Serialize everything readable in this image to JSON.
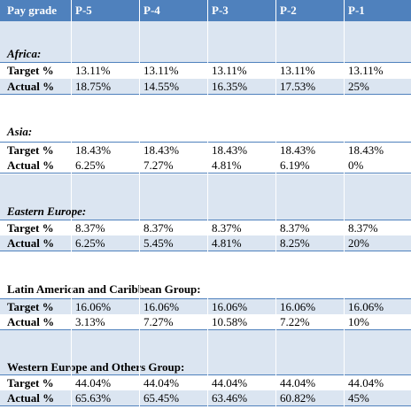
{
  "header": {
    "label": "Pay grade",
    "columns": [
      "P-5",
      "P-4",
      "P-3",
      "P-2",
      "P-1"
    ]
  },
  "groups": [
    {
      "name": "Africa:",
      "target_label": "Target %",
      "actual_label": "Actual %",
      "target": [
        "13.11%",
        "13.11%",
        "13.11%",
        "13.11%",
        "13.11%"
      ],
      "actual": [
        "18.75%",
        "14.55%",
        "16.35%",
        "17.53%",
        "25%"
      ]
    },
    {
      "name": "Asia:",
      "target_label": "Target %",
      "actual_label": "Actual %",
      "target": [
        "18.43%",
        "18.43%",
        "18.43%",
        "18.43%",
        "18.43%"
      ],
      "actual": [
        "6.25%",
        "7.27%",
        "4.81%",
        "6.19%",
        "0%"
      ]
    },
    {
      "name": "Eastern Europe:",
      "target_label": "Target %",
      "actual_label": "Actual %",
      "target": [
        "8.37%",
        "8.37%",
        "8.37%",
        "8.37%",
        "8.37%"
      ],
      "actual": [
        "6.25%",
        "5.45%",
        "4.81%",
        "8.25%",
        "20%"
      ]
    },
    {
      "name": "Latin American and Caribbean Group:",
      "target_label": "Target %",
      "actual_label": "Actual %",
      "target": [
        "16.06%",
        "16.06%",
        "16.06%",
        "16.06%",
        "16.06%"
      ],
      "actual": [
        "3.13%",
        "7.27%",
        "10.58%",
        "7.22%",
        "10%"
      ]
    },
    {
      "name": "Western Europe and Others Group:",
      "target_label": "Target %",
      "actual_label": "Actual %",
      "target": [
        "44.04%",
        "44.04%",
        "44.04%",
        "44.04%",
        "44.04%"
      ],
      "actual": [
        "65.63%",
        "65.45%",
        "63.46%",
        "60.82%",
        "45%"
      ]
    }
  ],
  "colors": {
    "header_bg": "#4f81bd",
    "band_bg": "#dbe5f1"
  }
}
